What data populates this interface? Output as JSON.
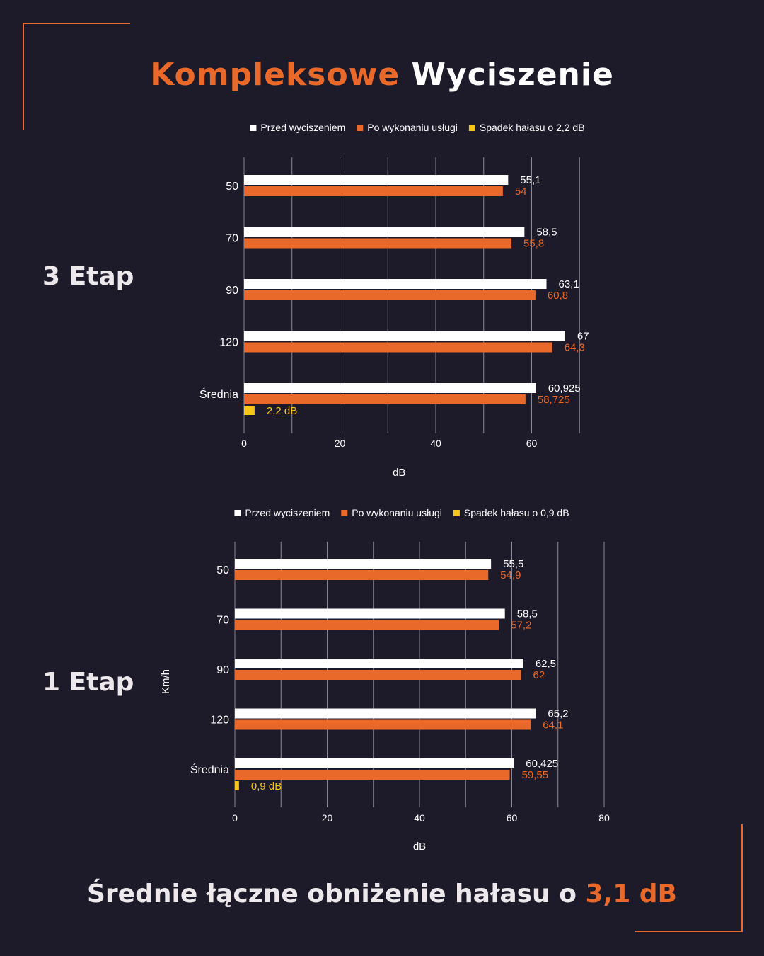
{
  "title": {
    "part1": "Kompleksowe",
    "part2": "Wyciszenie"
  },
  "stages": {
    "stage3": "3 Etap",
    "stage1": "1 Etap"
  },
  "footer": {
    "text": "Średnie łączne obniżenie hałasu o ",
    "value": "3,1 dB"
  },
  "colors": {
    "background": "#1d1a29",
    "accent": "#e8692a",
    "before": "#ffffff",
    "after": "#e8692a",
    "drop": "#f5c518"
  },
  "chart_data": [
    {
      "type": "bar",
      "orientation": "horizontal",
      "categories": [
        "50",
        "70",
        "90",
        "120",
        "Średnia"
      ],
      "series": [
        {
          "name": "Przed wyciszeniem",
          "values": [
            55.1,
            58.5,
            63.1,
            67,
            60.925
          ],
          "labels": [
            "55,1",
            "58,5",
            "63,1",
            "67",
            "60,925"
          ],
          "color": "#ffffff"
        },
        {
          "name": "Po wykonaniu usługi",
          "values": [
            54,
            55.8,
            60.8,
            64.3,
            58.725
          ],
          "labels": [
            "54",
            "55,8",
            "60,8",
            "64,3",
            "58,725"
          ],
          "color": "#e8692a"
        },
        {
          "name": "Spadek hałasu o 2,2 dB",
          "values": [
            null,
            null,
            null,
            null,
            2.2
          ],
          "labels": [
            "",
            "",
            "",
            "",
            "2,2 dB"
          ],
          "color": "#f5c518"
        }
      ],
      "xticks": [
        0,
        20,
        40,
        60
      ],
      "xlabel": "dB",
      "ylabel": "",
      "xlim": [
        0,
        70
      ],
      "grid": true,
      "legend": "top"
    },
    {
      "type": "bar",
      "orientation": "horizontal",
      "categories": [
        "50",
        "70",
        "90",
        "120",
        "Średnia"
      ],
      "series": [
        {
          "name": "Przed wyciszeniem",
          "values": [
            55.5,
            58.5,
            62.5,
            65.2,
            60.425
          ],
          "labels": [
            "55,5",
            "58,5",
            "62,5",
            "65,2",
            "60,425"
          ],
          "color": "#ffffff"
        },
        {
          "name": "Po wykonaniu usługi",
          "values": [
            54.9,
            57.2,
            62,
            64.1,
            59.55
          ],
          "labels": [
            "54,9",
            "57,2",
            "62",
            "64,1",
            "59,55"
          ],
          "color": "#e8692a"
        },
        {
          "name": "Spadek hałasu o 0,9 dB",
          "values": [
            null,
            null,
            null,
            null,
            0.9
          ],
          "labels": [
            "",
            "",
            "",
            "",
            "0,9 dB"
          ],
          "color": "#f5c518"
        }
      ],
      "xticks": [
        0,
        20,
        40,
        60,
        80
      ],
      "xlabel": "dB",
      "ylabel": "Km/h",
      "xlim": [
        0,
        80
      ],
      "grid": true,
      "legend": "top"
    }
  ]
}
